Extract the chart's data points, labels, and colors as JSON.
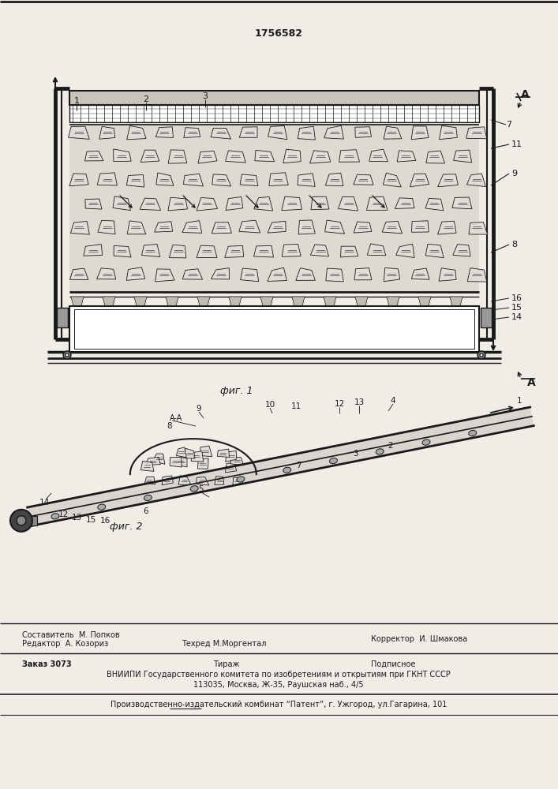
{
  "patent_number": "1756582",
  "bg_color": "#f0ede6",
  "line_color": "#1a1a1a",
  "fig_label1": "фиг. 1",
  "fig_label2": "фиг. 2",
  "section_label": "A-A",
  "section_mark": "A",
  "editor_line": "Редактор  А. Козориз",
  "composer_line1": "Составитель  М. Попков",
  "composer_line2": "Техред М.Моргентал",
  "corrector_line": "Корректор  И. Шмакова",
  "order_line": "Заказ 3073",
  "tirazh_line": "Тираж",
  "podpisnoe_line": "Подписное",
  "vniip_line": "ВНИИПИ Государственного комитета по изобретениям и открытиям при ГКНТ СССР",
  "address_line": "113035, Москва, Ж-35, Раушская наб., 4/5",
  "patent_line": "Производственно-издательский комбинат “Патент”, г. Ужгород, ул.Гагарина, 101"
}
